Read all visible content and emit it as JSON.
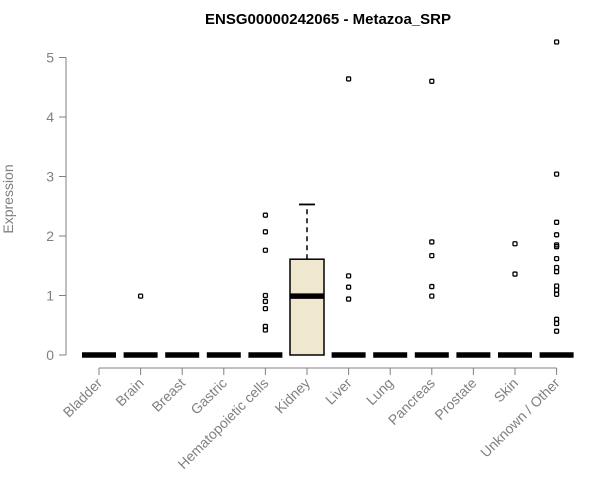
{
  "chart_data": {
    "type": "boxplot",
    "title": "ENSG00000242065 - Metazoa_SRP",
    "xlabel": "",
    "ylabel": "Expression",
    "ylim": [
      0,
      5.3
    ],
    "yticks": [
      0,
      1,
      2,
      3,
      4,
      5
    ],
    "grid": false,
    "box_fill": "#efe8cf",
    "categories": [
      "Bladder",
      "Brain",
      "Breast",
      "Gastric",
      "Hematopoietic cells",
      "Kidney",
      "Liver",
      "Lung",
      "Pancreas",
      "Prostate",
      "Skin",
      "Unknown / Other"
    ],
    "boxes": [
      {
        "q1": 0,
        "median": 0,
        "q3": 0,
        "whisker_low": 0,
        "whisker_high": 0,
        "outliers": []
      },
      {
        "q1": 0,
        "median": 0,
        "q3": 0,
        "whisker_low": 0,
        "whisker_high": 0,
        "outliers": [
          0.99
        ]
      },
      {
        "q1": 0,
        "median": 0,
        "q3": 0,
        "whisker_low": 0,
        "whisker_high": 0,
        "outliers": []
      },
      {
        "q1": 0,
        "median": 0,
        "q3": 0,
        "whisker_low": 0,
        "whisker_high": 0,
        "outliers": []
      },
      {
        "q1": 0,
        "median": 0,
        "q3": 0,
        "whisker_low": 0,
        "whisker_high": 0,
        "outliers": [
          2.35,
          2.07,
          1.76,
          1.0,
          0.9,
          0.78,
          0.48,
          0.42
        ]
      },
      {
        "q1": 0,
        "median": 0.99,
        "q3": 1.61,
        "whisker_low": 0,
        "whisker_high": 2.53,
        "outliers": []
      },
      {
        "q1": 0,
        "median": 0,
        "q3": 0,
        "whisker_low": 0,
        "whisker_high": 0,
        "outliers": [
          4.64,
          1.33,
          1.14,
          0.94
        ]
      },
      {
        "q1": 0,
        "median": 0,
        "q3": 0,
        "whisker_low": 0,
        "whisker_high": 0,
        "outliers": []
      },
      {
        "q1": 0,
        "median": 0,
        "q3": 0,
        "whisker_low": 0,
        "whisker_high": 0,
        "outliers": [
          4.6,
          1.9,
          1.67,
          1.15,
          0.99
        ]
      },
      {
        "q1": 0,
        "median": 0,
        "q3": 0,
        "whisker_low": 0,
        "whisker_high": 0,
        "outliers": []
      },
      {
        "q1": 0,
        "median": 0,
        "q3": 0,
        "whisker_low": 0,
        "whisker_high": 0,
        "outliers": [
          1.87,
          1.36
        ]
      },
      {
        "q1": 0,
        "median": 0,
        "q3": 0,
        "whisker_low": 0,
        "whisker_high": 0,
        "outliers": [
          5.26,
          3.04,
          2.23,
          2.02,
          1.85,
          1.82,
          1.62,
          1.47,
          1.4,
          1.16,
          1.09,
          1.02,
          0.6,
          0.53,
          0.4
        ]
      }
    ]
  }
}
